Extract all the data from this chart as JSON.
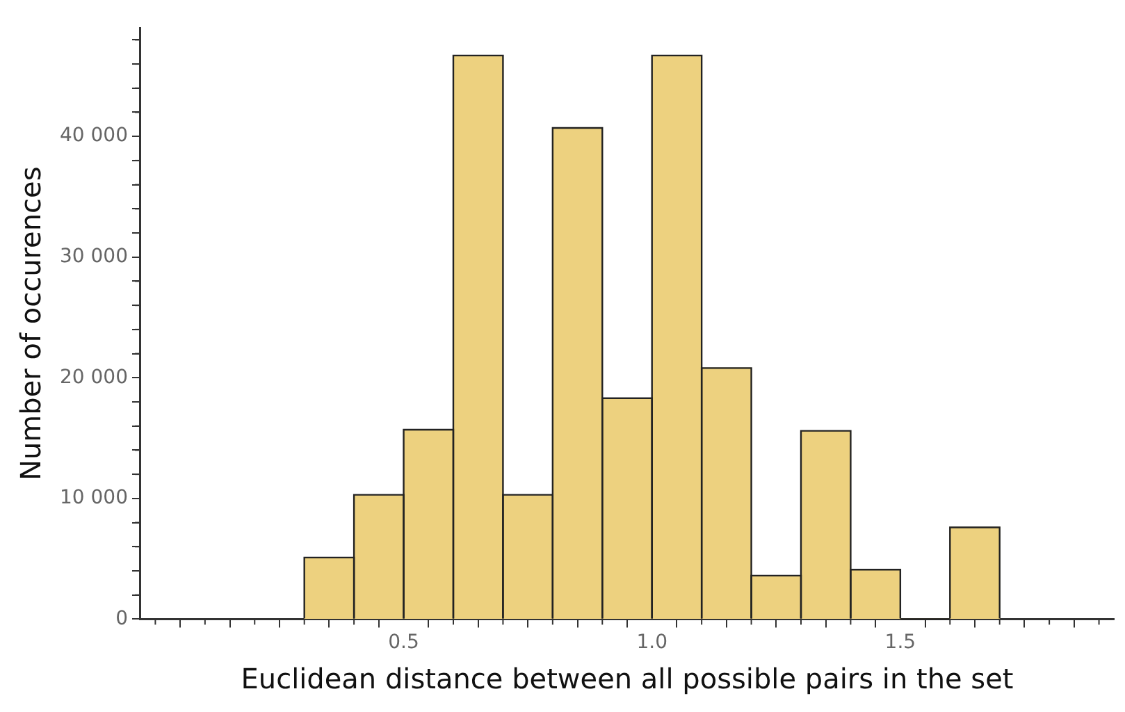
{
  "chart_data": {
    "type": "histogram",
    "xlabel": "Euclidean distance between all possible pairs in the set",
    "ylabel": "Number of occurences",
    "bins": [
      0.3,
      0.4,
      0.5,
      0.6,
      0.7,
      0.8,
      0.9,
      1.0,
      1.1,
      1.2,
      1.3,
      1.4,
      1.5,
      1.6,
      1.7
    ],
    "values": [
      5100,
      10300,
      15700,
      46700,
      10300,
      40700,
      18300,
      46700,
      20800,
      3600,
      15600,
      4100,
      0,
      7600
    ],
    "color": "#edd17f",
    "xlim": [
      -0.03,
      1.93
    ],
    "xticks": [
      {
        "value": 0,
        "label": null
      },
      {
        "value": 0.1,
        "label": null
      },
      {
        "value": 0.2,
        "label": null
      },
      {
        "value": 0.3,
        "label": null
      },
      {
        "value": 0.4,
        "label": null
      },
      {
        "value": 0.5,
        "label": "0.5"
      },
      {
        "value": 0.6,
        "label": null
      },
      {
        "value": 0.7,
        "label": null
      },
      {
        "value": 0.8,
        "label": null
      },
      {
        "value": 0.9,
        "label": null
      },
      {
        "value": 1.0,
        "label": "1.0"
      },
      {
        "value": 1.1,
        "label": null
      },
      {
        "value": 1.2,
        "label": null
      },
      {
        "value": 1.3,
        "label": null
      },
      {
        "value": 1.4,
        "label": null
      },
      {
        "value": 1.5,
        "label": "1.5"
      },
      {
        "value": 1.6,
        "label": null
      },
      {
        "value": 1.7,
        "label": null
      },
      {
        "value": 1.8,
        "label": null
      },
      {
        "value": 1.9,
        "label": null
      }
    ],
    "ylim": [
      0,
      49000
    ],
    "yticks": [
      0,
      {
        "value": 2000,
        "label": null
      },
      {
        "value": 4000,
        "label": null
      },
      {
        "value": 6000,
        "label": null
      },
      {
        "value": 8000,
        "label": null
      },
      {
        "value": 10000,
        "label": "10 000"
      },
      {
        "value": 12000,
        "label": null
      },
      {
        "value": 14000,
        "label": null
      },
      {
        "value": 16000,
        "label": null
      },
      {
        "value": 18000,
        "label": null
      },
      {
        "value": 20000,
        "label": "20 000"
      },
      {
        "value": 22000,
        "label": null
      },
      {
        "value": 24000,
        "label": null
      },
      {
        "value": 26000,
        "label": null
      },
      {
        "value": 28000,
        "label": null
      },
      {
        "value": 30000,
        "label": "30 000"
      },
      {
        "value": 32000,
        "label": null
      },
      {
        "value": 34000,
        "label": null
      },
      {
        "value": 36000,
        "label": null
      },
      {
        "value": 38000,
        "label": null
      },
      {
        "value": 40000,
        "label": "40 000"
      },
      {
        "value": 42000,
        "label": null
      },
      {
        "value": 44000,
        "label": null
      },
      {
        "value": 46000,
        "label": null
      },
      {
        "value": 48000,
        "label": null
      }
    ],
    "grid": false,
    "legend": false
  }
}
